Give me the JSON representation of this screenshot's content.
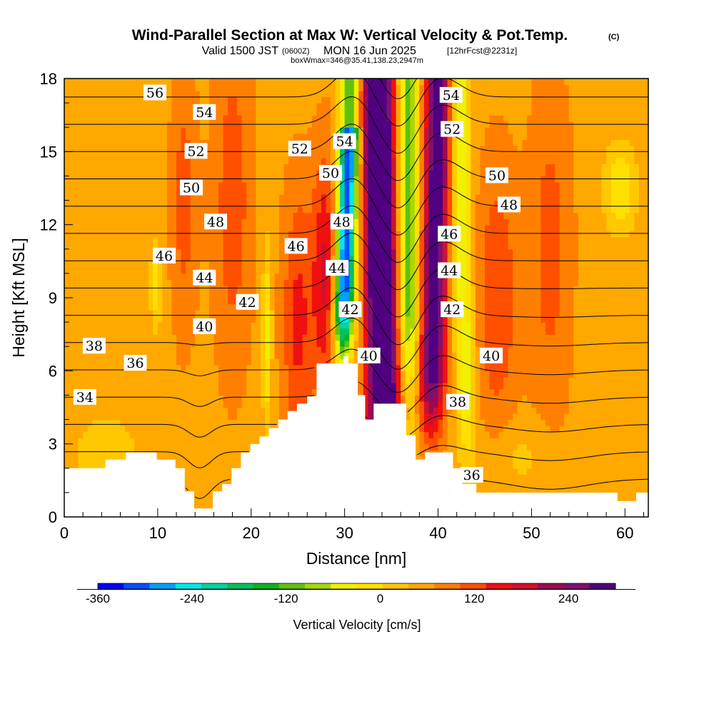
{
  "title": {
    "main": "Wind-Parallel Section at Max W: Vertical Velocity & Pot.Temp.",
    "mark": "(C)",
    "valid": "Valid 1500 JST",
    "valid_utc": "(0600Z)",
    "date": "MON 16 Jun 2025",
    "fcst": "[12hrFcst@2231z]",
    "box": "boxWmax=346@35.41,138.23,2947m"
  },
  "chart_data": {
    "type": "heatmap",
    "xlabel": "Distance [nm]",
    "ylabel": "Height [Kft MSL]",
    "xlim": [
      0,
      62.5
    ],
    "ylim": [
      0,
      18
    ],
    "xticks": [
      "0",
      "10",
      "20",
      "30",
      "40",
      "50",
      "60"
    ],
    "yticks": [
      "0",
      "3",
      "6",
      "9",
      "12",
      "15",
      "18"
    ],
    "colorbar": {
      "label": "Vertical Velocity [cm/s]",
      "range": [
        -360,
        300
      ],
      "step": 30,
      "ticks": [
        "-360",
        "-240",
        "-120",
        "0",
        "120",
        "240"
      ],
      "colors": [
        "#0000ff",
        "#0050ff",
        "#00a0ff",
        "#00e8e8",
        "#00d2a0",
        "#00c060",
        "#10b020",
        "#60c010",
        "#a8d800",
        "#f0f000",
        "#ffe000",
        "#ffc800",
        "#ffa800",
        "#ff8000",
        "#ff5000",
        "#f01010",
        "#d01030",
        "#a00850",
        "#801070",
        "#500080"
      ]
    },
    "theta_contours": {
      "unit": "C",
      "step": 1,
      "labels": [
        {
          "text": "56",
          "x": 9.7,
          "y": 17.4
        },
        {
          "text": "54",
          "x": 15.0,
          "y": 16.6
        },
        {
          "text": "52",
          "x": 14.1,
          "y": 15.0
        },
        {
          "text": "50",
          "x": 13.6,
          "y": 13.5
        },
        {
          "text": "48",
          "x": 16.2,
          "y": 12.1
        },
        {
          "text": "46",
          "x": 10.7,
          "y": 10.7
        },
        {
          "text": "44",
          "x": 15.0,
          "y": 9.8
        },
        {
          "text": "42",
          "x": 19.6,
          "y": 8.8
        },
        {
          "text": "40",
          "x": 15.0,
          "y": 7.8
        },
        {
          "text": "38",
          "x": 3.2,
          "y": 7.0
        },
        {
          "text": "36",
          "x": 7.6,
          "y": 6.3
        },
        {
          "text": "34",
          "x": 2.2,
          "y": 4.9
        },
        {
          "text": "52",
          "x": 25.2,
          "y": 15.1
        },
        {
          "text": "50",
          "x": 28.5,
          "y": 14.1
        },
        {
          "text": "46",
          "x": 24.8,
          "y": 11.1
        },
        {
          "text": "54",
          "x": 30.0,
          "y": 15.4
        },
        {
          "text": "48",
          "x": 29.7,
          "y": 12.1
        },
        {
          "text": "44",
          "x": 29.2,
          "y": 10.2
        },
        {
          "text": "42",
          "x": 30.6,
          "y": 8.5
        },
        {
          "text": "40",
          "x": 32.6,
          "y": 6.6
        },
        {
          "text": "54",
          "x": 41.4,
          "y": 17.3
        },
        {
          "text": "52",
          "x": 41.5,
          "y": 15.9
        },
        {
          "text": "46",
          "x": 41.2,
          "y": 11.6
        },
        {
          "text": "44",
          "x": 41.2,
          "y": 10.1
        },
        {
          "text": "42",
          "x": 41.5,
          "y": 8.5
        },
        {
          "text": "50",
          "x": 46.3,
          "y": 14.0
        },
        {
          "text": "48",
          "x": 47.6,
          "y": 12.8
        },
        {
          "text": "40",
          "x": 45.7,
          "y": 6.6
        },
        {
          "text": "38",
          "x": 42.1,
          "y": 4.7
        },
        {
          "text": "36",
          "x": 43.6,
          "y": 1.7
        }
      ]
    },
    "terrain_profile": [
      [
        0,
        2.0
      ],
      [
        4.4,
        2.0
      ],
      [
        4.4,
        2.35
      ],
      [
        6.6,
        2.35
      ],
      [
        6.6,
        2.65
      ],
      [
        9.9,
        2.65
      ],
      [
        9.9,
        2.35
      ],
      [
        11.9,
        2.35
      ],
      [
        11.9,
        2.0
      ],
      [
        12.9,
        2.0
      ],
      [
        12.9,
        1.05
      ],
      [
        13.9,
        1.05
      ],
      [
        13.9,
        0.35
      ],
      [
        15.9,
        0.35
      ],
      [
        15.9,
        1.05
      ],
      [
        16.9,
        1.05
      ],
      [
        16.9,
        1.35
      ],
      [
        17.9,
        1.35
      ],
      [
        17.9,
        2.0
      ],
      [
        18.9,
        2.0
      ],
      [
        18.9,
        2.65
      ],
      [
        19.9,
        2.65
      ],
      [
        19.9,
        3.0
      ],
      [
        20.9,
        3.0
      ],
      [
        20.9,
        3.3
      ],
      [
        21.9,
        3.3
      ],
      [
        21.9,
        3.65
      ],
      [
        22.9,
        3.65
      ],
      [
        22.9,
        4.0
      ],
      [
        23.9,
        4.0
      ],
      [
        23.9,
        4.35
      ],
      [
        24.9,
        4.35
      ],
      [
        24.9,
        4.65
      ],
      [
        26.0,
        4.65
      ],
      [
        26.0,
        4.95
      ],
      [
        27.0,
        4.95
      ],
      [
        27.0,
        5.3
      ],
      [
        27.0,
        6.3
      ],
      [
        29.9,
        6.3
      ],
      [
        29.9,
        6.6
      ],
      [
        30.4,
        6.6
      ],
      [
        30.4,
        6.3
      ],
      [
        31.4,
        6.3
      ],
      [
        31.4,
        5.0
      ],
      [
        32.2,
        5.0
      ],
      [
        32.2,
        4.0
      ],
      [
        33.1,
        4.0
      ],
      [
        33.1,
        4.65
      ],
      [
        36.6,
        4.65
      ],
      [
        36.6,
        3.35
      ],
      [
        37.6,
        3.35
      ],
      [
        37.6,
        2.35
      ],
      [
        38.6,
        2.35
      ],
      [
        38.6,
        2.65
      ],
      [
        41.6,
        2.65
      ],
      [
        41.6,
        2.0
      ],
      [
        42.6,
        2.0
      ],
      [
        42.6,
        1.35
      ],
      [
        44.1,
        1.35
      ],
      [
        44.1,
        1.0
      ],
      [
        59.2,
        1.0
      ],
      [
        59.2,
        0.65
      ],
      [
        61.2,
        0.65
      ],
      [
        61.2,
        1.0
      ],
      [
        62.5,
        1.0
      ]
    ],
    "w_features": [
      {
        "desc": "updraft core",
        "x": 33.8,
        "w_max": 300
      },
      {
        "desc": "downdraft",
        "x": 30.2,
        "w_min": -330
      },
      {
        "desc": "updraft secondary",
        "x": 39.8,
        "w_max": 210
      },
      {
        "desc": "downdraft secondary",
        "x": 36.8,
        "w_min": -150
      }
    ]
  }
}
